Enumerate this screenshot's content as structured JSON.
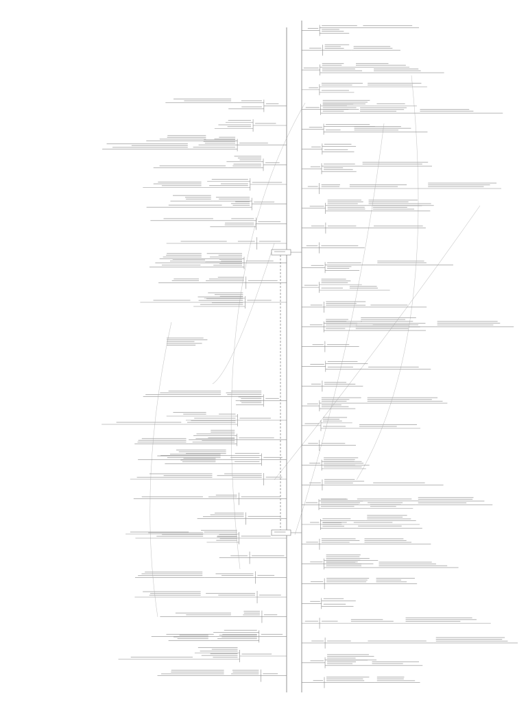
{
  "mindmap": {
    "line_color": "#8a8a8a",
    "link_color": "#c8c8c8",
    "text_color": "#9a9a9a",
    "node_border": "#7a7a7a",
    "background": "#ffffff",
    "labels_legible": false,
    "right_branches": 34,
    "left_branches": 30
  }
}
